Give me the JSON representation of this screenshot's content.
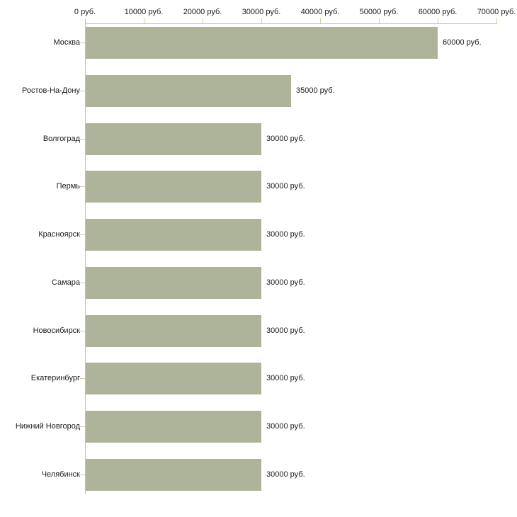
{
  "chart_data": {
    "type": "bar",
    "orientation": "horizontal",
    "title": "",
    "xlabel": "",
    "ylabel": "",
    "unit": "руб.",
    "categories": [
      "Москва",
      "Ростов-На-Дону",
      "Волгоград",
      "Пермь",
      "Красноярск",
      "Самара",
      "Новосибирск",
      "Екатеринбург",
      "Нижний Новгород",
      "Челябинск"
    ],
    "values": [
      60000,
      35000,
      30000,
      30000,
      30000,
      30000,
      30000,
      30000,
      30000,
      30000
    ],
    "value_labels": [
      "60000 руб.",
      "35000 руб.",
      "30000 руб.",
      "30000 руб.",
      "30000 руб.",
      "30000 руб.",
      "30000 руб.",
      "30000 руб.",
      "30000 руб.",
      "30000 руб."
    ],
    "x_axis": {
      "position": "top",
      "range": [
        0,
        70000
      ],
      "tick_values": [
        0,
        10000,
        20000,
        30000,
        40000,
        50000,
        60000,
        70000
      ],
      "tick_labels": [
        "0 руб.",
        "10000 руб.",
        "20000 руб.",
        "30000 руб.",
        "40000 руб.",
        "50000 руб.",
        "60000 руб.",
        "70000 руб."
      ]
    },
    "grid": false,
    "legend": "none",
    "colors": {
      "bar": "#aeb499",
      "axis_line": "#c0c0c0",
      "tick": "#cfd0a4",
      "text": "#1c1c1c",
      "background": "#ffffff"
    }
  }
}
